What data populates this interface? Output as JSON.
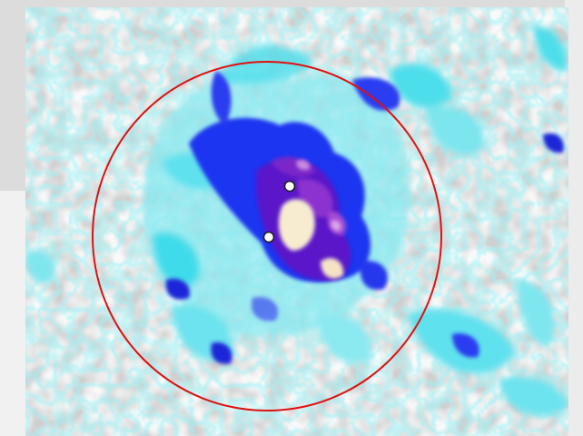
{
  "viewer": {
    "content": "heatmap-blob",
    "colormap": [
      "#f4f4f4",
      "#c8c8c8",
      "#7fe6ee",
      "#22d8ea",
      "#1a2cf0",
      "#5a10c8",
      "#8a2ed0",
      "#f5e7c8"
    ],
    "roi_color": "#e01010",
    "marker_color": "#ffffff"
  }
}
